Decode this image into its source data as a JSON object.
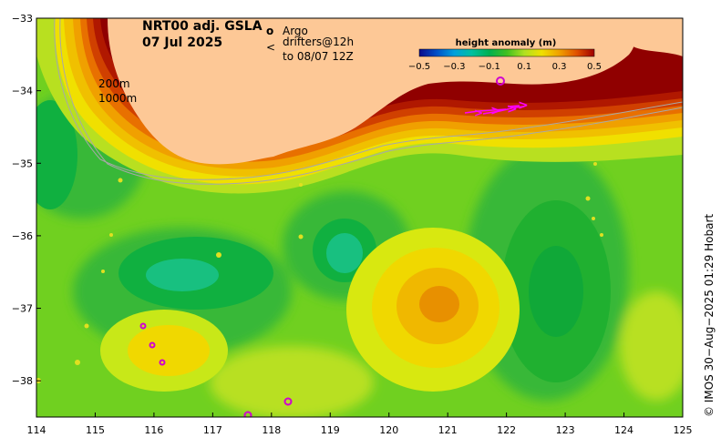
{
  "title": {
    "line1": "NRT00 adj. GSLA",
    "line2": "07 Jul 2025"
  },
  "legend": {
    "argo_symbol": "o",
    "argo_label": "Argo",
    "drifter_symbol": "<",
    "drifter_label": "drifters@12h",
    "drifter_label2": "to 08/07 12Z",
    "argo_color": "#e000e0",
    "drifter_color": "#ff00ff"
  },
  "colorbar": {
    "title": "height anomaly (m)",
    "ticks": [
      "−0.5",
      "−0.3",
      "−0.1",
      "0.1",
      "0.3",
      "0.5"
    ],
    "min": -0.5,
    "max": 0.5
  },
  "depth_labels": {
    "c200": "200m",
    "c1000": "1000m"
  },
  "credit": "© IMOS 30−Aug−2025 01:29 Hobart",
  "axes": {
    "x_ticks": [
      "114",
      "115",
      "116",
      "117",
      "118",
      "119",
      "120",
      "121",
      "122",
      "123",
      "124",
      "125"
    ],
    "y_ticks": [
      "−33",
      "−34",
      "−35",
      "−36",
      "−37",
      "−38"
    ],
    "lon_range": [
      114,
      125
    ],
    "lat_range": [
      -38.5,
      -33
    ]
  },
  "colors": {
    "land": "#fdc896",
    "contour": "#a8a8a8"
  },
  "map_data": {
    "anomaly_features": [
      {
        "lon": 116.9,
        "lat": -36.5,
        "value": -0.08,
        "name": "eddy-cool-west"
      },
      {
        "lon": 119.0,
        "lat": -36.3,
        "value": -0.06,
        "name": "eddy-cool-central"
      },
      {
        "lon": 122.8,
        "lat": -37.0,
        "value": -0.01,
        "name": "eddy-cool-east"
      },
      {
        "lon": 120.7,
        "lat": -37.0,
        "value": 0.32,
        "name": "eddy-warm-central"
      },
      {
        "lon": 116.2,
        "lat": -37.7,
        "value": 0.21,
        "name": "eddy-warm-west"
      }
    ]
  }
}
